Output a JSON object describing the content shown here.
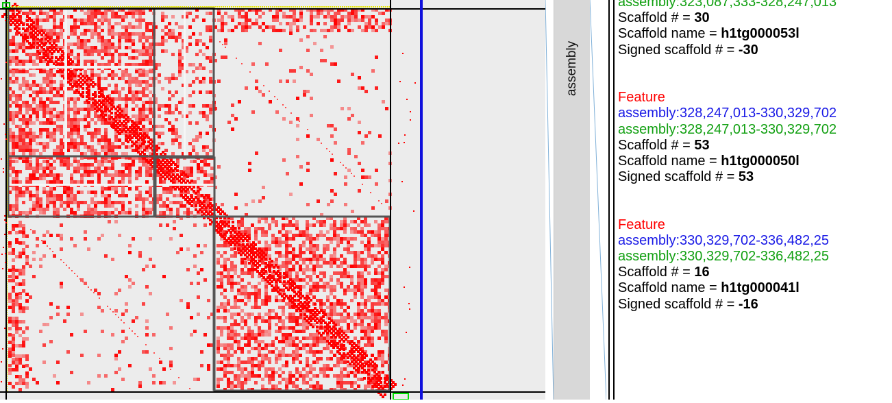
{
  "colors": {
    "contact": "#ff0000",
    "background": "#ececec",
    "scaffold_border": "#555555",
    "chromosome_border": "#000000",
    "cursor_line": "#1010dd",
    "selection": "#e6e600",
    "feature_title": "#ff0000",
    "assembly_blue": "#1a1ae6",
    "assembly_green": "#12a012"
  },
  "track": {
    "label": "assembly"
  },
  "features": [
    {
      "title": "",
      "blue_coord": "",
      "green_coord": "assembly:323,087,333-328,247,013",
      "scaffold_num_label": "Scaffold # = ",
      "scaffold_num": "30",
      "scaffold_name_label": "Scaffold name = ",
      "scaffold_name": "h1tg000053l",
      "signed_label": "Signed scaffold # = ",
      "signed_num": "-30"
    },
    {
      "title": "Feature",
      "blue_coord": "assembly:328,247,013-330,329,702",
      "green_coord": "assembly:328,247,013-330,329,702",
      "scaffold_num_label": "Scaffold # = ",
      "scaffold_num": "53",
      "scaffold_name_label": "Scaffold name = ",
      "scaffold_name": "h1tg000050l",
      "signed_label": "Signed scaffold # = ",
      "signed_num": "53"
    },
    {
      "title": "Feature",
      "blue_coord": "assembly:330,329,702-336,482,25",
      "green_coord": "assembly:330,329,702-336,482,25",
      "scaffold_num_label": "Scaffold # = ",
      "scaffold_num": "16",
      "scaffold_name_label": "Scaffold name = ",
      "scaffold_name": "h1tg000041l",
      "signed_label": "Signed scaffold # = ",
      "signed_num": "-16"
    }
  ]
}
